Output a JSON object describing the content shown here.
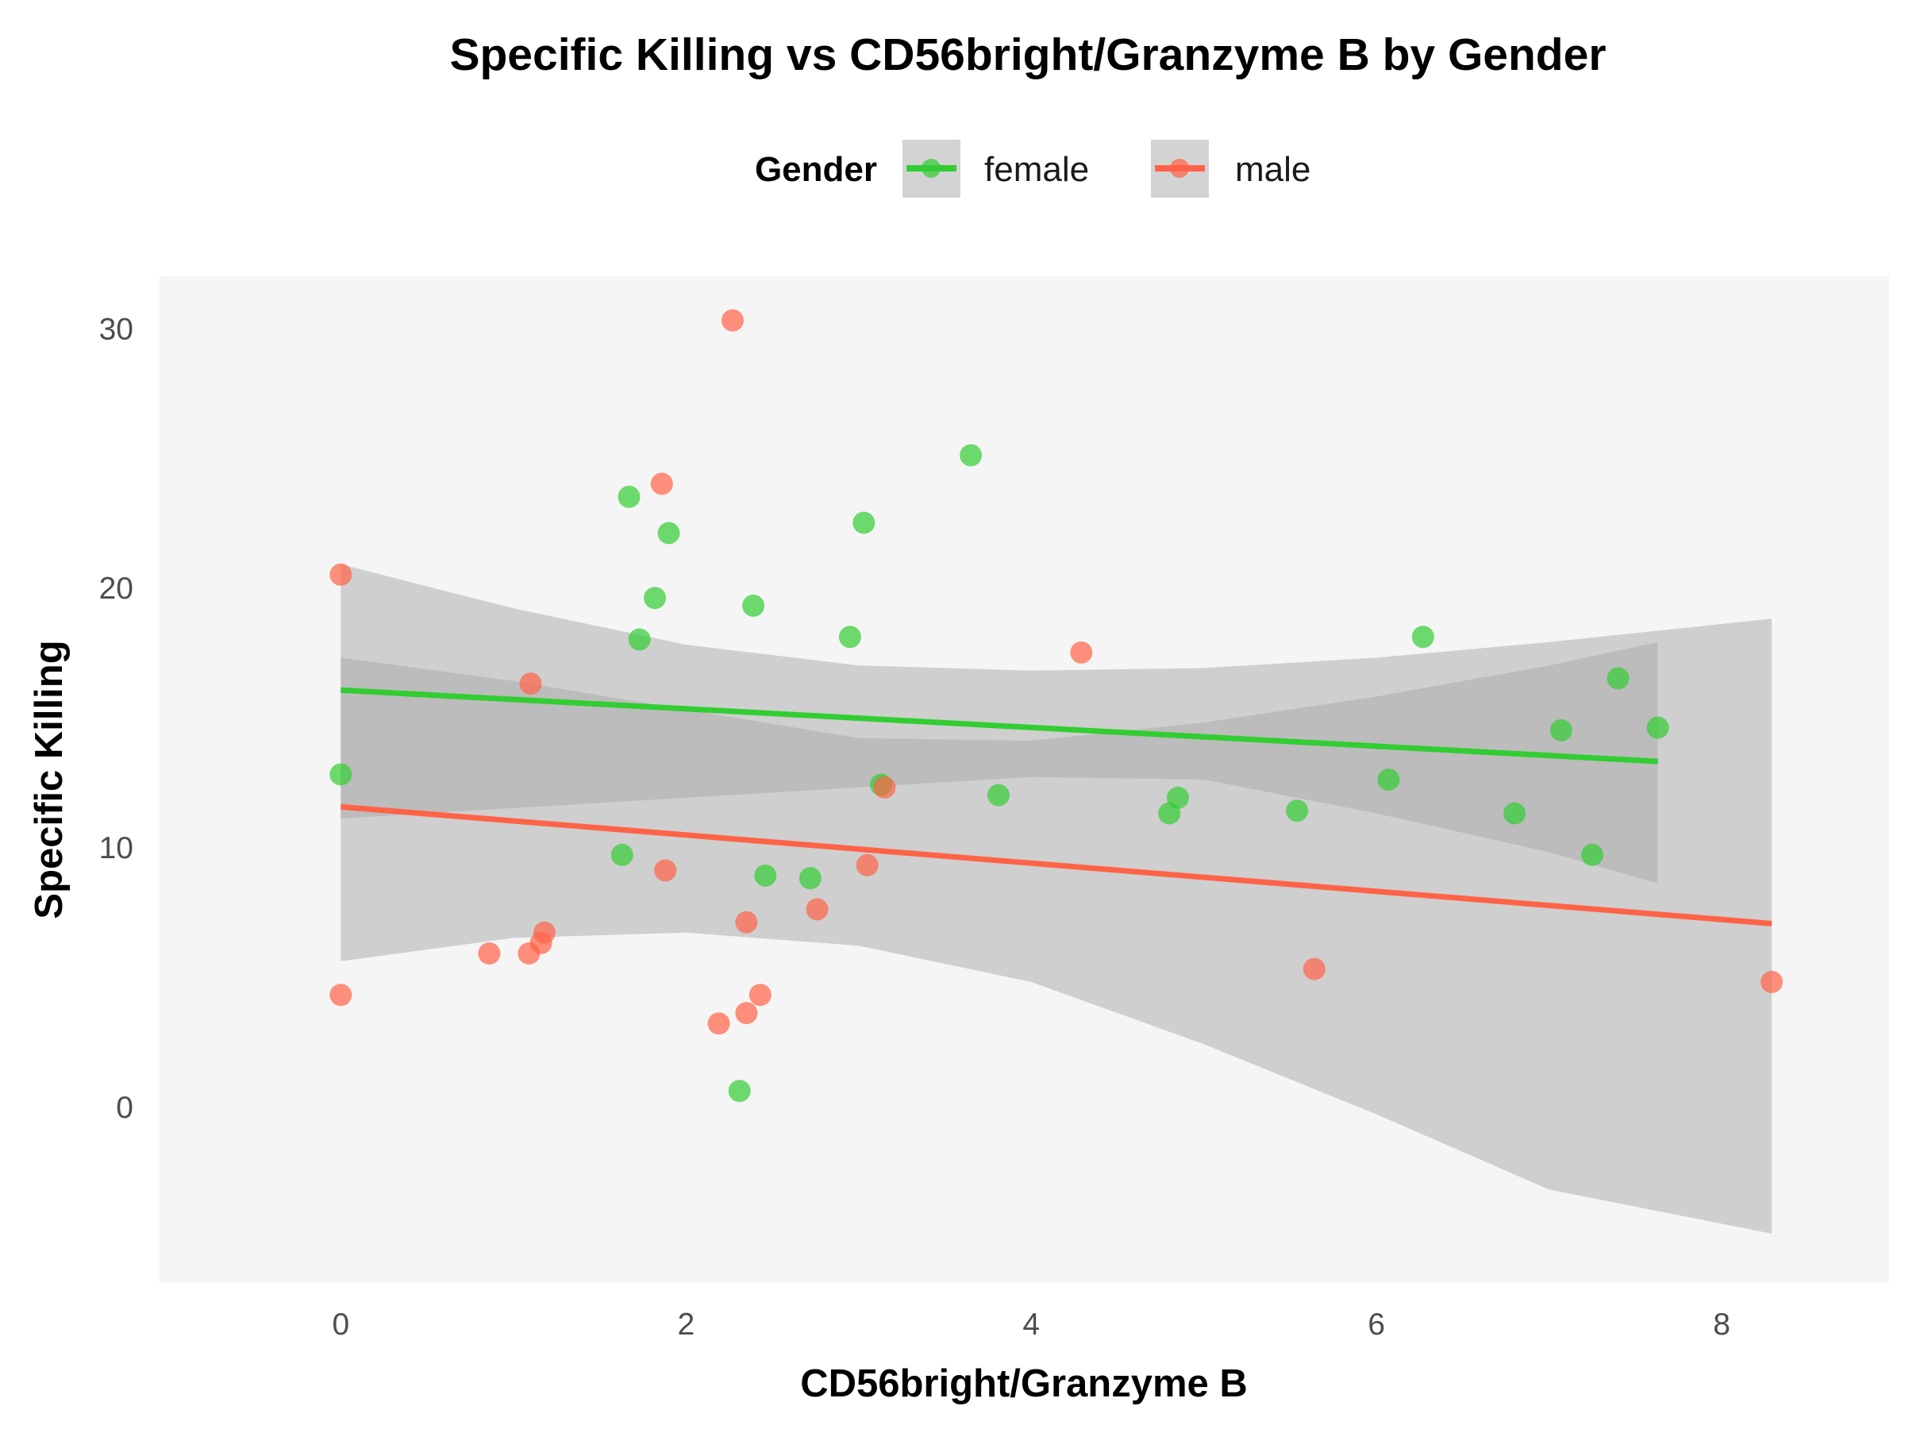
{
  "chart_data": {
    "type": "scatter",
    "title": "Specific Killing vs CD56bright/Granzyme B by Gender",
    "xlabel": "CD56bright/Granzyme B",
    "ylabel": "Specific Killing",
    "xlim": [
      -1.05,
      8.97
    ],
    "ylim": [
      -6.8,
      32.0
    ],
    "xticks": [
      "0",
      "2",
      "4",
      "6",
      "8"
    ],
    "yticks": [
      "0",
      "10",
      "20",
      "30"
    ],
    "grid": false,
    "legend": {
      "title": "Gender",
      "position": "top"
    },
    "series": [
      {
        "name": "female",
        "color": "#32cd32",
        "points": [
          [
            0.0,
            12.8
          ],
          [
            1.63,
            9.7
          ],
          [
            1.67,
            23.5
          ],
          [
            1.73,
            18.0
          ],
          [
            1.82,
            19.6
          ],
          [
            1.9,
            22.1
          ],
          [
            2.31,
            0.6
          ],
          [
            2.39,
            19.3
          ],
          [
            2.46,
            8.9
          ],
          [
            2.72,
            8.8
          ],
          [
            2.95,
            18.1
          ],
          [
            3.03,
            22.5
          ],
          [
            3.13,
            12.4
          ],
          [
            3.65,
            25.1
          ],
          [
            3.81,
            12.0
          ],
          [
            4.8,
            11.3
          ],
          [
            4.85,
            11.9
          ],
          [
            5.54,
            11.4
          ],
          [
            6.07,
            12.6
          ],
          [
            6.27,
            18.1
          ],
          [
            6.8,
            11.3
          ],
          [
            7.07,
            14.5
          ],
          [
            7.25,
            9.7
          ],
          [
            7.4,
            16.5
          ],
          [
            7.63,
            14.6
          ]
        ],
        "fit": {
          "x": [
            0.0,
            7.63
          ],
          "y": [
            16.05,
            13.3
          ]
        },
        "ci": {
          "x": [
            0.0,
            1.0,
            2.0,
            3.0,
            4.0,
            5.0,
            6.0,
            7.0,
            7.63
          ],
          "upper": [
            17.3,
            16.4,
            15.3,
            14.2,
            14.1,
            14.8,
            15.8,
            17.0,
            17.9
          ],
          "lower": [
            11.1,
            11.5,
            11.9,
            12.3,
            12.7,
            12.6,
            11.3,
            9.8,
            8.6
          ]
        }
      },
      {
        "name": "male",
        "color": "#ff6347",
        "points": [
          [
            0.0,
            20.5
          ],
          [
            0.0,
            4.3
          ],
          [
            0.86,
            5.9
          ],
          [
            1.09,
            5.9
          ],
          [
            1.1,
            16.3
          ],
          [
            1.16,
            6.3
          ],
          [
            1.18,
            6.7
          ],
          [
            1.86,
            24.0
          ],
          [
            1.88,
            9.1
          ],
          [
            2.19,
            3.2
          ],
          [
            2.27,
            30.3
          ],
          [
            2.35,
            3.6
          ],
          [
            2.35,
            7.1
          ],
          [
            2.43,
            4.3
          ],
          [
            2.76,
            7.6
          ],
          [
            3.05,
            9.3
          ],
          [
            3.15,
            12.3
          ],
          [
            4.29,
            17.5
          ],
          [
            5.64,
            5.3
          ],
          [
            8.29,
            4.8
          ]
        ],
        "fit": {
          "x": [
            0.0,
            8.29
          ],
          "y": [
            11.55,
            7.05
          ]
        },
        "ci": {
          "x": [
            0.0,
            1.0,
            2.0,
            3.0,
            4.0,
            5.0,
            6.0,
            7.0,
            8.29
          ],
          "upper": [
            20.9,
            19.2,
            17.8,
            17.0,
            16.8,
            16.9,
            17.3,
            17.9,
            18.8
          ],
          "lower": [
            5.6,
            6.5,
            6.7,
            6.2,
            4.8,
            2.4,
            -0.3,
            -3.2,
            -4.9
          ]
        }
      }
    ]
  }
}
